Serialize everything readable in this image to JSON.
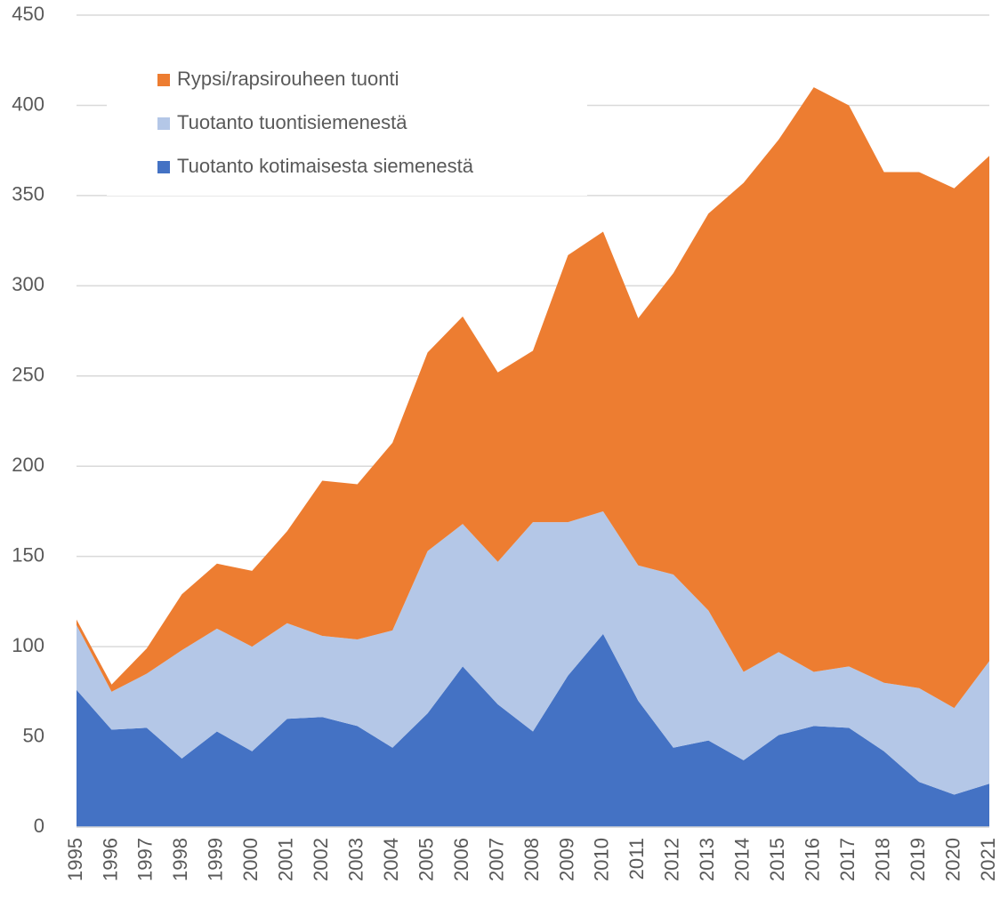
{
  "chart_data": {
    "type": "area",
    "stacked": true,
    "categories": [
      "1995",
      "1996",
      "1997",
      "1998",
      "1999",
      "2000",
      "2001",
      "2002",
      "2003",
      "2004",
      "2005",
      "2006",
      "2007",
      "2008",
      "2009",
      "2010",
      "2011",
      "2012",
      "2013",
      "2014",
      "2015",
      "2016",
      "2017",
      "2018",
      "2019",
      "2020",
      "2021"
    ],
    "series": [
      {
        "name": "Tuotanto kotimaisesta siemenestä",
        "color": "#4472c4",
        "values": [
          76,
          54,
          55,
          38,
          53,
          42,
          60,
          61,
          56,
          44,
          63,
          89,
          68,
          53,
          84,
          107,
          70,
          44,
          48,
          37,
          51,
          56,
          55,
          42,
          25,
          18,
          24
        ]
      },
      {
        "name": "Tuotanto tuontisiemenestä",
        "color": "#b4c7e7",
        "values": [
          36,
          21,
          30,
          60,
          57,
          58,
          53,
          45,
          48,
          65,
          90,
          79,
          79,
          116,
          85,
          68,
          75,
          96,
          72,
          49,
          46,
          30,
          34,
          38,
          52,
          48,
          68
        ]
      },
      {
        "name": "Rypsi/rapsirouheen tuonti",
        "color": "#ed7d31",
        "values": [
          3,
          4,
          14,
          31,
          36,
          42,
          51,
          86,
          86,
          104,
          110,
          115,
          105,
          95,
          148,
          155,
          137,
          167,
          220,
          271,
          284,
          324,
          311,
          283,
          286,
          288,
          280
        ]
      }
    ],
    "ylim": [
      0,
      450
    ],
    "yticks": [
      0,
      50,
      100,
      150,
      200,
      250,
      300,
      350,
      400,
      450
    ],
    "grid": true,
    "legend": "top-left"
  }
}
